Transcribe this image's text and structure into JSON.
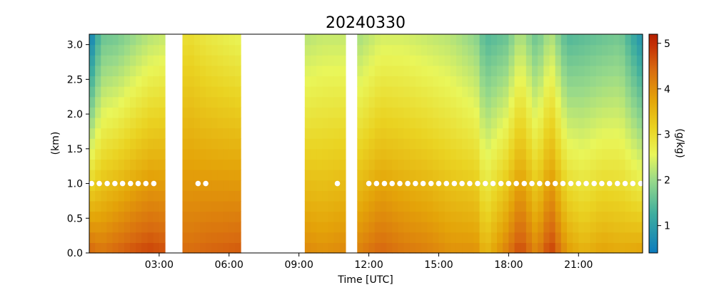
{
  "chart_data": {
    "type": "heatmap",
    "title": "20240330",
    "xlabel": "Time [UTC]",
    "ylabel": "(km)",
    "colorbar_label": "(g/kg)",
    "x_unit": "hours UTC",
    "xlim": [
      0,
      23.75
    ],
    "ylim": [
      0,
      3.15
    ],
    "x_ticks": [
      {
        "value": 3,
        "label": "03:00"
      },
      {
        "value": 6,
        "label": "06:00"
      },
      {
        "value": 9,
        "label": "09:00"
      },
      {
        "value": 12,
        "label": "12:00"
      },
      {
        "value": 15,
        "label": "15:00"
      },
      {
        "value": 18,
        "label": "18:00"
      },
      {
        "value": 21,
        "label": "21:00"
      }
    ],
    "y_ticks": [
      {
        "value": 0.0,
        "label": "0.0"
      },
      {
        "value": 0.5,
        "label": "0.5"
      },
      {
        "value": 1.0,
        "label": "1.0"
      },
      {
        "value": 1.5,
        "label": "1.5"
      },
      {
        "value": 2.0,
        "label": "2.0"
      },
      {
        "value": 2.5,
        "label": "2.5"
      },
      {
        "value": 3.0,
        "label": "3.0"
      }
    ],
    "colorbar": {
      "vmin": 0.4,
      "vmax": 5.2,
      "colormap": "blue-green-yellow-orange-red",
      "ticks": [
        {
          "value": 1,
          "label": "1"
        },
        {
          "value": 2,
          "label": "2"
        },
        {
          "value": 3,
          "label": "3"
        },
        {
          "value": 4,
          "label": "4"
        },
        {
          "value": 5,
          "label": "5"
        }
      ]
    },
    "gaps_hours": [
      [
        3.25,
        4.1
      ],
      [
        6.5,
        9.25
      ],
      [
        11.0,
        11.55
      ]
    ],
    "height_levels_km": [
      0.0,
      0.15,
      0.3,
      0.45,
      0.6,
      0.75,
      0.9,
      1.05,
      1.2,
      1.35,
      1.5,
      1.65,
      1.8,
      1.95,
      2.1,
      2.25,
      2.4,
      2.55,
      2.7,
      2.85,
      3.0
    ],
    "profile_anchors": [
      {
        "time": 0.1,
        "surface": 4.5,
        "top": 0.6
      },
      {
        "time": 0.5,
        "surface": 4.3,
        "top": 1.6
      },
      {
        "time": 1.2,
        "surface": 4.5,
        "top": 1.7
      },
      {
        "time": 2.0,
        "surface": 4.7,
        "top": 2.0
      },
      {
        "time": 2.6,
        "surface": 4.8,
        "top": 2.2
      },
      {
        "time": 3.2,
        "surface": 4.7,
        "top": 2.3
      },
      {
        "time": 4.2,
        "surface": 4.4,
        "top": 3.0
      },
      {
        "time": 5.0,
        "surface": 4.5,
        "top": 2.8
      },
      {
        "time": 6.4,
        "surface": 4.6,
        "top": 2.6
      },
      {
        "time": 9.3,
        "surface": 4.1,
        "top": 2.2
      },
      {
        "time": 10.0,
        "surface": 4.0,
        "top": 2.3
      },
      {
        "time": 10.9,
        "surface": 4.1,
        "top": 2.3
      },
      {
        "time": 11.6,
        "surface": 4.2,
        "top": 2.1
      },
      {
        "time": 12.5,
        "surface": 4.5,
        "top": 2.4
      },
      {
        "time": 13.5,
        "surface": 4.3,
        "top": 2.4
      },
      {
        "time": 14.5,
        "surface": 4.2,
        "top": 2.3
      },
      {
        "time": 15.5,
        "surface": 4.0,
        "top": 2.2
      },
      {
        "time": 16.6,
        "surface": 4.0,
        "top": 1.9
      },
      {
        "time": 17.0,
        "surface": 3.5,
        "top": 1.4
      },
      {
        "time": 17.9,
        "surface": 4.2,
        "top": 1.6
      },
      {
        "time": 18.5,
        "surface": 4.8,
        "top": 2.2
      },
      {
        "time": 19.2,
        "surface": 4.1,
        "top": 1.6
      },
      {
        "time": 19.8,
        "surface": 4.9,
        "top": 2.2
      },
      {
        "time": 20.5,
        "surface": 3.9,
        "top": 1.4
      },
      {
        "time": 21.2,
        "surface": 3.6,
        "top": 1.5
      },
      {
        "time": 22.0,
        "surface": 3.8,
        "top": 1.6
      },
      {
        "time": 22.8,
        "surface": 3.7,
        "top": 1.7
      },
      {
        "time": 23.7,
        "surface": 3.8,
        "top": 0.8
      }
    ],
    "markers": {
      "height_km": 1.0,
      "color": "#ffffff",
      "times_hours": [
        0.1,
        0.43,
        0.77,
        1.1,
        1.43,
        1.77,
        2.1,
        2.43,
        2.77,
        4.67,
        5.0,
        10.65,
        12.0,
        12.33,
        12.67,
        13.0,
        13.33,
        13.67,
        14.0,
        14.33,
        14.67,
        15.0,
        15.33,
        15.67,
        16.0,
        16.33,
        16.67,
        17.0,
        17.33,
        17.67,
        18.0,
        18.33,
        18.67,
        19.0,
        19.33,
        19.67,
        20.0,
        20.33,
        20.67,
        21.0,
        21.33,
        21.67,
        22.0,
        22.33,
        22.67,
        23.0,
        23.33,
        23.67
      ]
    }
  }
}
